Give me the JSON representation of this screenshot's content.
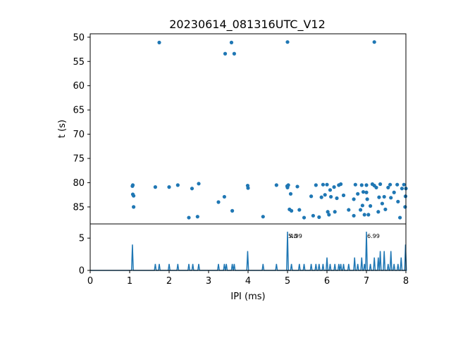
{
  "chart_data": [
    {
      "type": "scatter",
      "title": "20230614_081316UTC_V12",
      "ylabel": "t (s)",
      "xlabel": "",
      "xlim": [
        0,
        8
      ],
      "ylim": [
        88.5,
        49.3
      ],
      "y_inverted": true,
      "grid": false,
      "yticks": [
        50,
        55,
        60,
        65,
        70,
        75,
        80,
        85
      ],
      "color": "#1f77b4",
      "points": [
        [
          1.75,
          51.1
        ],
        [
          3.42,
          53.4
        ],
        [
          3.58,
          51.1
        ],
        [
          3.65,
          53.4
        ],
        [
          5.0,
          51.0
        ],
        [
          7.2,
          51.0
        ],
        [
          1.08,
          80.5
        ],
        [
          1.07,
          80.7
        ],
        [
          1.08,
          82.4
        ],
        [
          1.1,
          82.7
        ],
        [
          1.1,
          85.0
        ],
        [
          1.65,
          80.9
        ],
        [
          2.0,
          80.9
        ],
        [
          2.22,
          80.5
        ],
        [
          2.5,
          87.2
        ],
        [
          2.58,
          81.2
        ],
        [
          2.72,
          87.0
        ],
        [
          2.75,
          80.2
        ],
        [
          3.25,
          84.0
        ],
        [
          3.4,
          82.9
        ],
        [
          3.6,
          85.8
        ],
        [
          3.99,
          80.6
        ],
        [
          4.0,
          81.1
        ],
        [
          4.38,
          87.0
        ],
        [
          4.72,
          80.5
        ],
        [
          4.99,
          80.7
        ],
        [
          5.0,
          81.0
        ],
        [
          5.02,
          80.5
        ],
        [
          5.05,
          85.5
        ],
        [
          5.08,
          82.3
        ],
        [
          5.1,
          85.8
        ],
        [
          5.25,
          80.8
        ],
        [
          5.3,
          85.6
        ],
        [
          5.42,
          87.2
        ],
        [
          5.6,
          82.8
        ],
        [
          5.65,
          86.8
        ],
        [
          5.72,
          80.5
        ],
        [
          5.8,
          87.1
        ],
        [
          5.86,
          83.0
        ],
        [
          5.9,
          80.4
        ],
        [
          5.95,
          82.5
        ],
        [
          6.0,
          80.4
        ],
        [
          6.02,
          86.0
        ],
        [
          6.05,
          86.6
        ],
        [
          6.08,
          81.5
        ],
        [
          6.1,
          82.9
        ],
        [
          6.18,
          80.9
        ],
        [
          6.2,
          86.0
        ],
        [
          6.25,
          83.2
        ],
        [
          6.3,
          80.5
        ],
        [
          6.35,
          80.3
        ],
        [
          6.42,
          82.6
        ],
        [
          6.55,
          85.6
        ],
        [
          6.68,
          83.4
        ],
        [
          6.68,
          86.8
        ],
        [
          6.72,
          80.4
        ],
        [
          6.78,
          82.3
        ],
        [
          6.85,
          85.6
        ],
        [
          6.88,
          80.5
        ],
        [
          6.9,
          84.7
        ],
        [
          6.92,
          81.9
        ],
        [
          6.95,
          86.6
        ],
        [
          7.0,
          80.5
        ],
        [
          7.0,
          82.0
        ],
        [
          7.02,
          83.4
        ],
        [
          7.05,
          86.6
        ],
        [
          7.1,
          84.8
        ],
        [
          7.15,
          80.3
        ],
        [
          7.2,
          80.6
        ],
        [
          7.25,
          81.0
        ],
        [
          7.3,
          86.0
        ],
        [
          7.32,
          83.0
        ],
        [
          7.35,
          80.3
        ],
        [
          7.4,
          84.3
        ],
        [
          7.45,
          82.9
        ],
        [
          7.48,
          85.5
        ],
        [
          7.55,
          81.0
        ],
        [
          7.6,
          80.4
        ],
        [
          7.62,
          83.1
        ],
        [
          7.7,
          82.0
        ],
        [
          7.78,
          80.4
        ],
        [
          7.8,
          83.9
        ],
        [
          7.85,
          87.2
        ],
        [
          7.9,
          81.2
        ],
        [
          7.95,
          80.4
        ],
        [
          7.98,
          85.0
        ],
        [
          7.99,
          82.8
        ],
        [
          8.0,
          81.2
        ]
      ]
    },
    {
      "type": "line",
      "title": "",
      "xlabel": "IPI (ms)",
      "ylabel": "",
      "xlim": [
        0,
        8
      ],
      "ylim": [
        0,
        7.2
      ],
      "grid": false,
      "xticks": [
        0,
        1,
        2,
        3,
        4,
        5,
        6,
        7,
        8
      ],
      "yticks": [
        0,
        5
      ],
      "color": "#1f77b4",
      "peaks": [
        [
          1.07,
          4
        ],
        [
          1.65,
          1
        ],
        [
          1.75,
          1
        ],
        [
          2.0,
          1
        ],
        [
          2.22,
          1
        ],
        [
          2.5,
          1
        ],
        [
          2.6,
          1
        ],
        [
          2.75,
          1
        ],
        [
          3.25,
          1
        ],
        [
          3.4,
          1
        ],
        [
          3.45,
          1
        ],
        [
          3.6,
          1
        ],
        [
          3.65,
          1
        ],
        [
          3.99,
          3
        ],
        [
          4.38,
          1
        ],
        [
          4.72,
          1
        ],
        [
          5.0,
          6
        ],
        [
          5.1,
          1
        ],
        [
          5.3,
          1
        ],
        [
          5.42,
          1
        ],
        [
          5.6,
          1
        ],
        [
          5.72,
          1
        ],
        [
          5.8,
          1
        ],
        [
          5.9,
          1
        ],
        [
          6.0,
          2
        ],
        [
          6.08,
          1
        ],
        [
          6.2,
          1
        ],
        [
          6.3,
          1
        ],
        [
          6.35,
          1
        ],
        [
          6.42,
          1
        ],
        [
          6.55,
          1
        ],
        [
          6.7,
          2
        ],
        [
          6.78,
          1
        ],
        [
          6.88,
          2
        ],
        [
          6.95,
          1
        ],
        [
          7.0,
          6
        ],
        [
          7.1,
          1
        ],
        [
          7.2,
          2
        ],
        [
          7.3,
          2
        ],
        [
          7.35,
          3
        ],
        [
          7.45,
          3
        ],
        [
          7.55,
          1
        ],
        [
          7.62,
          3
        ],
        [
          7.7,
          1
        ],
        [
          7.8,
          1
        ],
        [
          7.88,
          2
        ],
        [
          7.99,
          4
        ]
      ],
      "annotations": [
        {
          "x": 5.0,
          "y": 6,
          "text": "5.0"
        },
        {
          "x": 5.0,
          "y": 6,
          "text": "4.99"
        },
        {
          "x": 7.0,
          "y": 6,
          "text": "6.99"
        }
      ]
    }
  ]
}
